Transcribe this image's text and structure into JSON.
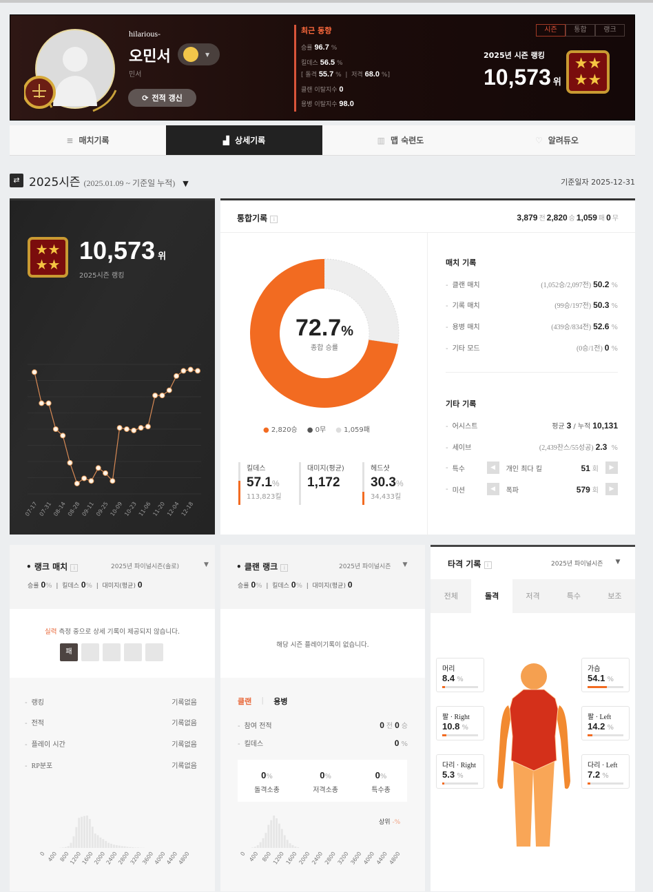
{
  "profile": {
    "nickname_en": "hilarious-",
    "name": "오민서",
    "clan": "민서",
    "refresh_label": "전적 갱신",
    "icons": {
      "avatar": "default-user-silhouette",
      "badge": "justice-scale-medal",
      "emblem": "crowned-smiley"
    }
  },
  "recent": {
    "title": "최근 동향",
    "winrate_label": "승률",
    "winrate": "96.7",
    "kd_label": "킬데스",
    "kd": "56.5",
    "assault_label": "돌격",
    "assault": "55.7",
    "sniper_label": "저격",
    "sniper": "68.0",
    "clan_leave_label": "클랜 이탈지수",
    "clan_leave": "0",
    "merc_leave_label": "용병 이탈지수",
    "merc_leave": "98.0",
    "pct": "%"
  },
  "rank_tabs": [
    "시즌",
    "통합",
    "랭크"
  ],
  "season_rank": {
    "label": "2025년 시즌 랭킹",
    "value": "10,573",
    "unit": "위"
  },
  "nav_tabs": [
    {
      "label": "매치기록",
      "icon": "list-icon"
    },
    {
      "label": "상세기록",
      "icon": "bar-chart-icon",
      "active": true
    },
    {
      "label": "맵 숙련도",
      "icon": "map-icon"
    },
    {
      "label": "알려듀오",
      "icon": "heart-icon"
    }
  ],
  "season": {
    "title": "2025시즌",
    "range": "(2025.01.09 ~ 기준일 누적)",
    "caret": "▼",
    "base_date": "기준일자 2025-12-31"
  },
  "left_panel": {
    "rank": "10,573",
    "unit": "위",
    "label": "2025시즌 랭킹"
  },
  "accent": "#f26b21",
  "total": {
    "title": "통합기록",
    "games": "3,879",
    "games_u": "전",
    "wins": "2,820",
    "wins_u": "승",
    "losses": "1,059",
    "losses_u": "패",
    "draws": "0",
    "draws_u": "무",
    "winrate": "72.7",
    "winrate_label": "종합 승률",
    "legend": [
      "2,820승",
      "0무",
      "1,059패"
    ],
    "kd_label": "킬데스",
    "kd": "57.1",
    "kills": "113,823킬",
    "dmg_label": "대미지(평균)",
    "dmg": "1,172",
    "hs_label": "헤드샷",
    "hs": "30.3",
    "hs_kills": "34,433킬"
  },
  "match_records": {
    "title": "매치 기록",
    "rows": [
      {
        "label": "클랜 매치",
        "detail": "(1,052승/2,097전)",
        "value": "50.2"
      },
      {
        "label": "기록 매치",
        "detail": "(99승/197전)",
        "value": "50.3"
      },
      {
        "label": "용병 매치",
        "detail": "(439승/834전)",
        "value": "52.6"
      },
      {
        "label": "기타 모드",
        "detail": "(0승/1전)",
        "value": "0"
      }
    ]
  },
  "other_records": {
    "title": "기타 기록",
    "assist": {
      "label": "어시스트",
      "avg_label": "평균",
      "avg": "3",
      "sum_label": "/ 누적",
      "sum": "10,131"
    },
    "save": {
      "label": "세이브",
      "detail": "(2,439찬스/55성공)",
      "value": "2.3"
    },
    "special": {
      "label": "특수",
      "item": "개인 최다 킬",
      "value": "51",
      "unit": "회"
    },
    "mission": {
      "label": "미션",
      "item": "폭파",
      "value": "579",
      "unit": "회"
    }
  },
  "rank_match": {
    "title": "랭크 매치",
    "season": "2025년 파이널시즌(솔로)",
    "winrate_label": "승률",
    "winrate": "0",
    "kd_label": "킬데스",
    "kd": "0",
    "dmg_label": "대미지(평균)",
    "dmg": "0",
    "notice_hl": "실력",
    "notice": " 측정 중으로 상세 기록이 제공되지 않습니다.",
    "placement": [
      "패",
      "",
      "",
      "",
      ""
    ],
    "rows": [
      {
        "label": "랭킹",
        "value": "기록없음"
      },
      {
        "label": "전적",
        "value": "기록없음"
      },
      {
        "label": "플레이 시간",
        "value": "기록없음"
      },
      {
        "label": "RP분포",
        "value": "기록없음"
      }
    ]
  },
  "clan_rank": {
    "title": "클랜 랭크",
    "season": "2025년 파이널시즌",
    "winrate_label": "승률",
    "winrate": "0",
    "kd_label": "킬데스",
    "kd": "0",
    "dmg_label": "대미지(평균)",
    "dmg": "0",
    "notice": "해당 시즌 플레이기록이 없습니다.",
    "subtabs": [
      "클랜",
      "용병"
    ],
    "games_label": "참여 전적",
    "games": "0",
    "games_u": "전",
    "wins": "0",
    "wins_u": "승",
    "kd_row_label": "킬데스",
    "kd_row": "0",
    "weapons": [
      {
        "label": "돌격소총",
        "value": "0"
      },
      {
        "label": "저격소총",
        "value": "0"
      },
      {
        "label": "특수총",
        "value": "0"
      }
    ],
    "top_label": "상위",
    "top_value": "-%"
  },
  "hit_records": {
    "title": "타격 기록",
    "season": "2025년 파이널시즌",
    "tabs": [
      "전체",
      "돌격",
      "저격",
      "특수",
      "보조"
    ],
    "active_tab": 1,
    "parts": [
      {
        "label": "머리",
        "value": 8.4
      },
      {
        "label": "가슴",
        "value": 54.1
      },
      {
        "label": "팔 · Right",
        "value": 10.8
      },
      {
        "label": "팔 · Left",
        "value": 14.2
      },
      {
        "label": "다리 · Right",
        "value": 5.3
      },
      {
        "label": "다리 · Left",
        "value": 7.2
      }
    ],
    "colors": {
      "chest": "#d4301a",
      "limbs": "#f5963c"
    }
  },
  "chart_data": [
    {
      "type": "line",
      "x_ticks": [
        "07-17",
        "07-31",
        "08-14",
        "08-28",
        "09-11",
        "09-25",
        "10-09",
        "10-23",
        "11-06",
        "11-20",
        "12-04",
        "12-18"
      ],
      "values": [
        94,
        70,
        70,
        50,
        45,
        24,
        8,
        12,
        10,
        20,
        16,
        10,
        51,
        50,
        49,
        51,
        52,
        76,
        76,
        80,
        91,
        95,
        96,
        95
      ],
      "grid": true
    },
    {
      "type": "pie",
      "categories": [
        "승",
        "무",
        "패"
      ],
      "values": [
        2820,
        0,
        1059
      ],
      "colors": [
        "#f26b21",
        "#555555",
        "#eeeeee"
      ]
    },
    {
      "type": "bar",
      "x_ticks": [
        "0",
        "400",
        "800",
        "1200",
        "1600",
        "2000",
        "2400",
        "2800",
        "3200",
        "3600",
        "4000",
        "4400",
        "4800"
      ],
      "values": [
        1,
        2,
        4,
        8,
        22,
        50,
        90,
        130,
        135,
        138,
        140,
        125,
        92,
        62,
        55,
        45,
        38,
        30,
        22,
        18,
        14,
        12,
        10,
        8,
        7,
        5,
        4,
        3,
        2,
        2,
        1,
        1
      ]
    },
    {
      "type": "bar",
      "x_ticks": [
        "0",
        "400",
        "800",
        "1200",
        "1600",
        "2000",
        "2400",
        "2800",
        "3200",
        "3600",
        "4000",
        "4400",
        "4800"
      ],
      "values": [
        2,
        5,
        12,
        25,
        42,
        65,
        100,
        120,
        140,
        128,
        105,
        82,
        55,
        35,
        20,
        12,
        6,
        3
      ]
    }
  ]
}
